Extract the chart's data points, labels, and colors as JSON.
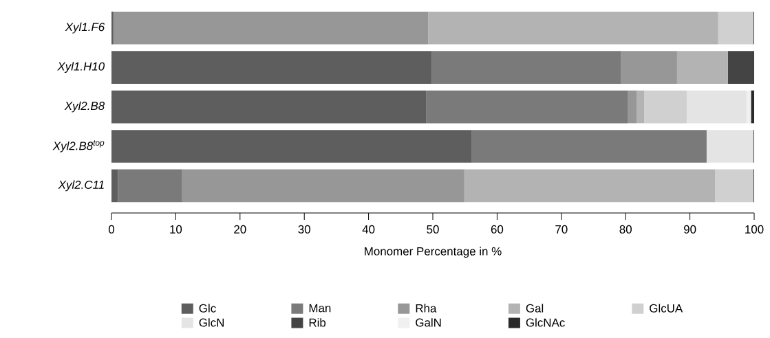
{
  "chart_data": {
    "type": "bar",
    "orientation": "horizontal",
    "stacked": true,
    "xlabel": "Monomer Percentage in %",
    "categories": [
      "Xyl1.F6",
      "Xyl1.H10",
      "Xyl2.B8",
      "Xyl2.B8$^{top}$",
      "Xyl2.C11"
    ],
    "xlim": [
      0,
      100
    ],
    "xticks": [
      0,
      10,
      20,
      30,
      40,
      50,
      60,
      70,
      80,
      90,
      100
    ],
    "legend": "bottom",
    "series": [
      {
        "name": "Glc",
        "color": "#5e5e5e",
        "values": [
          0.3,
          49.8,
          49.0,
          56.0,
          1.0
        ]
      },
      {
        "name": "Man",
        "color": "#7a7a7a",
        "values": [
          0,
          29.5,
          31.3,
          36.6,
          10.0
        ]
      },
      {
        "name": "Rha",
        "color": "#979797",
        "values": [
          49.0,
          8.7,
          1.4,
          0,
          43.9
        ]
      },
      {
        "name": "Gal",
        "color": "#b3b3b3",
        "values": [
          45.1,
          7.9,
          1.2,
          0,
          39.0
        ]
      },
      {
        "name": "GlcUA",
        "color": "#d0d0d0",
        "values": [
          5.5,
          0,
          6.6,
          0,
          6.0
        ]
      },
      {
        "name": "GlcN",
        "color": "#e4e4e4",
        "values": [
          0,
          0,
          9.3,
          7.3,
          0
        ]
      },
      {
        "name": "Rib",
        "color": "#444444",
        "values": [
          0,
          4.0,
          0,
          0,
          0
        ]
      },
      {
        "name": "GalN",
        "color": "#f0f0f0",
        "values": [
          0,
          0,
          0.7,
          0,
          0
        ]
      },
      {
        "name": "GlcNAc",
        "color": "#2a2a2a",
        "values": [
          0.1,
          0.1,
          0.5,
          0.1,
          0.1
        ]
      }
    ]
  }
}
